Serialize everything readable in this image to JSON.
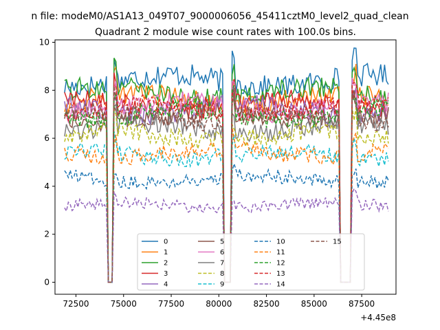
{
  "chart_data": {
    "type": "line",
    "suptitle": "n file: modeM0/AS1A13_049T07_9000006056_45411cztM0_level2_quad_clean",
    "title": "Quadrant 2 module wise count rates with 100.0s bins.",
    "xlabel": "",
    "ylabel": "",
    "x_offset_label": "+4.45e8",
    "x_offset": 445000000,
    "xlim": [
      71400,
      89300
    ],
    "ylim": [
      -0.5,
      10.1
    ],
    "x_ticks": [
      72500,
      75000,
      77500,
      80000,
      82500,
      85000,
      87500
    ],
    "x_tick_labels": [
      "72500",
      "75000",
      "77500",
      "80000",
      "82500",
      "85000",
      "87500"
    ],
    "y_ticks": [
      0,
      2,
      4,
      6,
      8,
      10
    ],
    "y_tick_labels": [
      "0",
      "2",
      "4",
      "6",
      "8",
      "10"
    ],
    "x_range": [
      71900,
      88900
    ],
    "bin_seconds": 100,
    "gaps": [
      [
        74150,
        74400
      ],
      [
        80300,
        80600
      ],
      [
        86350,
        86950
      ]
    ],
    "legend": {
      "placement": "lower center",
      "ncol": 4
    },
    "series": [
      {
        "name": "0",
        "color": "#1f77b4",
        "dash": "solid",
        "level": 8.4
      },
      {
        "name": "1",
        "color": "#ff7f0e",
        "dash": "solid",
        "level": 7.6
      },
      {
        "name": "2",
        "color": "#2ca02c",
        "dash": "solid",
        "level": 7.9
      },
      {
        "name": "3",
        "color": "#d62728",
        "dash": "solid",
        "level": 7.4
      },
      {
        "name": "4",
        "color": "#9467bd",
        "dash": "solid",
        "level": 7.2
      },
      {
        "name": "5",
        "color": "#8c564b",
        "dash": "solid",
        "level": 6.9
      },
      {
        "name": "6",
        "color": "#e377c2",
        "dash": "solid",
        "level": 7.3
      },
      {
        "name": "7",
        "color": "#7f7f7f",
        "dash": "solid",
        "level": 6.4
      },
      {
        "name": "8",
        "color": "#bcbd22",
        "dash": "dashed",
        "level": 6.1
      },
      {
        "name": "9",
        "color": "#17becf",
        "dash": "dashed",
        "level": 5.3
      },
      {
        "name": "10",
        "color": "#1f77b4",
        "dash": "dashed",
        "level": 4.3
      },
      {
        "name": "11",
        "color": "#ff7f0e",
        "dash": "dashed",
        "level": 5.4
      },
      {
        "name": "12",
        "color": "#2ca02c",
        "dash": "dashed",
        "level": 7.0
      },
      {
        "name": "13",
        "color": "#d62728",
        "dash": "dashed",
        "level": 7.2
      },
      {
        "name": "14",
        "color": "#9467bd",
        "dash": "dashed",
        "level": 3.2
      },
      {
        "name": "15",
        "color": "#8c564b",
        "dash": "dashed",
        "level": 6.9
      }
    ]
  }
}
